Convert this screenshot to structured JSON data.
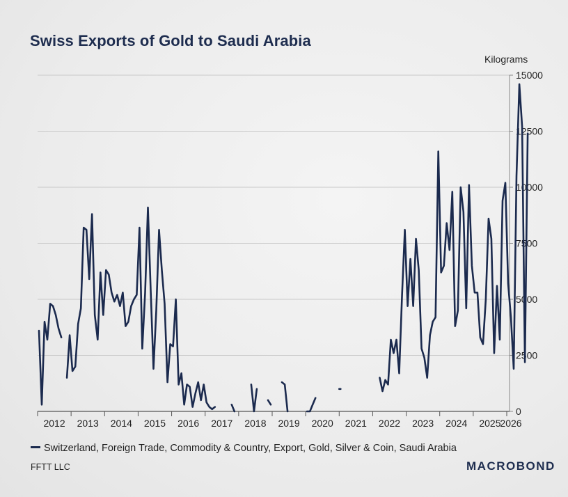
{
  "chart_data": {
    "type": "line",
    "title": "Swiss Exports of Gold to Saudi Arabia",
    "ylabel": "Kilograms",
    "xlabel": "",
    "ylim": [
      0,
      15000
    ],
    "xlim": [
      2012.0,
      2026.0
    ],
    "yticks": [
      0,
      2500,
      5000,
      7500,
      10000,
      12500,
      15000
    ],
    "ytick_labels": [
      "0",
      "2500",
      "5000",
      "7500",
      "10000",
      "12500",
      "15000"
    ],
    "xtick_labels": [
      "2012",
      "2013",
      "2014",
      "2015",
      "2016",
      "2017",
      "2018",
      "2019",
      "2020",
      "2021",
      "2022",
      "2023",
      "2024",
      "2025",
      "2026"
    ],
    "grid": "horizontal",
    "legend_position": "bottom-left",
    "series": [
      {
        "name": "Switzerland, Foreign Trade, Commodity & Country, Export, Gold, Silver & Coin, Saudi Arabia",
        "color": "#1b2a4e",
        "start": "2012-01",
        "frequency": "monthly",
        "values": [
          3600,
          300,
          4000,
          3200,
          4800,
          4700,
          4300,
          3700,
          3300,
          null,
          1500,
          3400,
          1800,
          2000,
          3900,
          4600,
          8200,
          8100,
          5900,
          8800,
          4300,
          3200,
          6200,
          4300,
          6300,
          6100,
          5300,
          4900,
          5200,
          4700,
          5300,
          3800,
          4000,
          4700,
          5000,
          5200,
          8200,
          2800,
          5300,
          9100,
          5400,
          1900,
          4500,
          8100,
          6300,
          4800,
          1300,
          3000,
          2900,
          5000,
          1200,
          1700,
          300,
          1200,
          1100,
          200,
          800,
          1300,
          500,
          1200,
          400,
          200,
          100,
          200,
          null,
          null,
          null,
          null,
          null,
          300,
          0,
          null,
          null,
          null,
          null,
          null,
          1200,
          0,
          1000,
          null,
          null,
          null,
          500,
          300,
          null,
          null,
          null,
          1300,
          1200,
          0,
          null,
          null,
          null,
          null,
          null,
          null,
          0,
          0,
          300,
          600,
          null,
          null,
          null,
          null,
          null,
          null,
          null,
          null,
          1000,
          null,
          null,
          null,
          null,
          null,
          null,
          null,
          null,
          null,
          null,
          null,
          null,
          null,
          1500,
          900,
          1400,
          1200,
          3200,
          2600,
          3200,
          1700,
          5200,
          8100,
          4700,
          6800,
          4700,
          7700,
          6300,
          2800,
          2400,
          1500,
          3400,
          4000,
          4200,
          11600,
          6200,
          6500,
          8400,
          7200,
          9800,
          3800,
          4500,
          10000,
          8900,
          4600,
          10100,
          6500,
          5300,
          5300,
          3300,
          3000,
          5000,
          8600,
          7700,
          2600,
          5600,
          3200,
          9400,
          10200,
          5700,
          4200,
          1900,
          10500,
          14600,
          12700,
          2200,
          12400
        ]
      }
    ],
    "legend": "Switzerland, Foreign Trade, Commodity & Country, Export, Gold, Silver & Coin, Saudi Arabia"
  },
  "footer": {
    "source": "FFTT LLC",
    "brand": "MACROBOND"
  }
}
